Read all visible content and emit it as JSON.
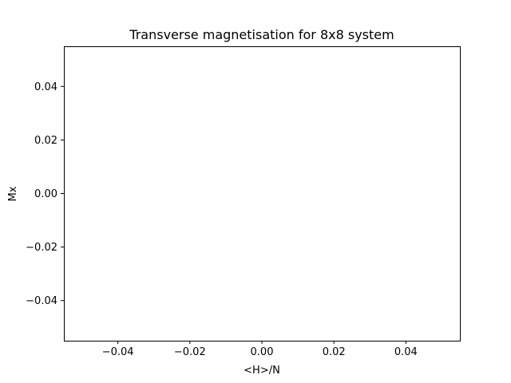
{
  "chart_data": {
    "type": "line",
    "title": "Transverse magnetisation for 8x8 system",
    "xlabel": "<H>/N",
    "ylabel": "Mx",
    "xlim": [
      -0.055,
      0.055
    ],
    "ylim": [
      -0.055,
      0.055
    ],
    "xticks": [
      -0.04,
      -0.02,
      0.0,
      0.02,
      0.04
    ],
    "yticks": [
      -0.04,
      -0.02,
      0.0,
      0.02,
      0.04
    ],
    "xtick_labels": [
      "−0.04",
      "−0.02",
      "0.00",
      "0.02",
      "0.04"
    ],
    "ytick_labels": [
      "−0.04",
      "−0.02",
      "0.00",
      "0.02",
      "0.04"
    ],
    "series": [],
    "grid": false
  }
}
